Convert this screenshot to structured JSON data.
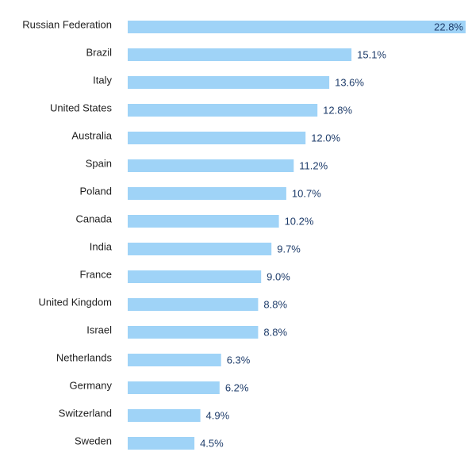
{
  "chart_data": {
    "type": "bar",
    "orientation": "horizontal",
    "title": "",
    "xlabel": "",
    "ylabel": "",
    "categories": [
      "Russian Federation",
      "Brazil",
      "Italy",
      "United States",
      "Australia",
      "Spain",
      "Poland",
      "Canada",
      "India",
      "France",
      "United Kingdom",
      "Israel",
      "Netherlands",
      "Germany",
      "Switzerland",
      "Sweden"
    ],
    "values": [
      22.8,
      15.1,
      13.6,
      12.8,
      12.0,
      11.2,
      10.7,
      10.2,
      9.7,
      9.0,
      8.8,
      8.8,
      6.3,
      6.2,
      4.9,
      4.5
    ],
    "value_labels": [
      "22.8%",
      "15.1%",
      "13.6%",
      "12.8%",
      "12.0%",
      "11.2%",
      "10.7%",
      "10.2%",
      "9.7%",
      "9.0%",
      "8.8%",
      "8.8%",
      "6.3%",
      "6.2%",
      "4.9%",
      "4.5%"
    ],
    "xlim": [
      0,
      22.8
    ],
    "grid": false,
    "legend": "none",
    "colors": {
      "bar": "#9fd3f7",
      "bar_top_value_text": "#1f3d6b",
      "value_text": "#1f3d6b",
      "category_text": "#1f1f1f"
    }
  }
}
